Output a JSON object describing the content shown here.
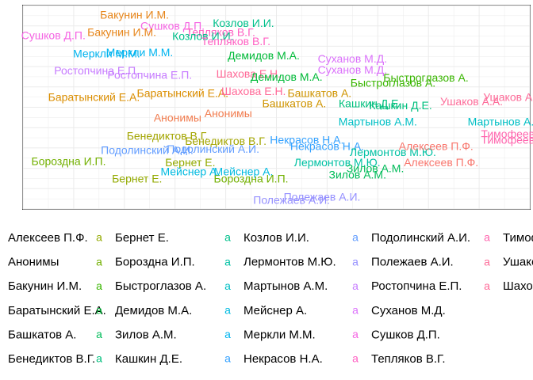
{
  "chart_data": {
    "type": "scatter",
    "title": "",
    "xlabel": "",
    "ylabel": "",
    "xlim": [
      0,
      100
    ],
    "ylim": [
      0,
      100
    ],
    "grid": true,
    "marker": "text",
    "legend": {
      "position": "bottom",
      "glyph": "a",
      "entries": [
        {
          "label": "Алексеев П.Ф.",
          "color": "#F8766D"
        },
        {
          "label": "Анонимы",
          "color": "#F17D50"
        },
        {
          "label": "Бакунин И.М.",
          "color": "#E7861B"
        },
        {
          "label": "Баратынский Е.А.",
          "color": "#DB8E00"
        },
        {
          "label": "Башкатов А.",
          "color": "#CF9400"
        },
        {
          "label": "Бенедиктов В.Г.",
          "color": "#A3A500"
        },
        {
          "label": "Бернет Е.",
          "color": "#93AA00"
        },
        {
          "label": "Бороздна И.П.",
          "color": "#72B000"
        },
        {
          "label": "Быстроглазов А.",
          "color": "#39B600"
        },
        {
          "label": "Демидов М.А.",
          "color": "#00BA38"
        },
        {
          "label": "Зилов А.М.",
          "color": "#00BC59"
        },
        {
          "label": "Кашкин Д.Е.",
          "color": "#00BF7D"
        },
        {
          "label": "Козлов И.И.",
          "color": "#00C08B"
        },
        {
          "label": "Лермонтов М.Ю.",
          "color": "#00C1A3"
        },
        {
          "label": "Мартынов А.М.",
          "color": "#00BFC4"
        },
        {
          "label": "Мейснер А.",
          "color": "#00BAE0"
        },
        {
          "label": "Меркли М.М.",
          "color": "#00B4EF"
        },
        {
          "label": "Некрасов Н.А.",
          "color": "#35A2FF"
        },
        {
          "label": "Подолинский А.И.",
          "color": "#619CFF"
        },
        {
          "label": "Полежаев А.И.",
          "color": "#9590FF"
        },
        {
          "label": "Ростопчина Е.П.",
          "color": "#C77CFF"
        },
        {
          "label": "Суханов М.Д.",
          "color": "#DB72FB"
        },
        {
          "label": "Сушков Д.П.",
          "color": "#F564E3"
        },
        {
          "label": "Тепляков В.Г.",
          "color": "#FF61C3"
        },
        {
          "label": "Тимофеев А.",
          "color": "#FF65AE"
        },
        {
          "label": "Ушаков А.А.",
          "color": "#FD6C99"
        },
        {
          "label": "Шахова Е.Н.",
          "color": "#FF6A98"
        }
      ]
    },
    "points": [
      {
        "label": "Бакунин И.М.",
        "x": 22.0,
        "y": 95.0,
        "color": "#E7861B"
      },
      {
        "label": "Сушков Д.П.",
        "x": 29.5,
        "y": 89.5,
        "color": "#F564E3"
      },
      {
        "label": "Козлов И.И.",
        "x": 43.5,
        "y": 91.0,
        "color": "#00C08B"
      },
      {
        "label": "Сушков Д.П.",
        "x": 6.0,
        "y": 85.0,
        "color": "#F564E3"
      },
      {
        "label": "Бакунин И.М.",
        "x": 19.5,
        "y": 86.5,
        "color": "#E7861B"
      },
      {
        "label": "Тепляков В.Г.",
        "x": 39.0,
        "y": 86.5,
        "color": "#FF61C3"
      },
      {
        "label": "Козлов И.И.",
        "x": 35.5,
        "y": 84.5,
        "color": "#00C08B"
      },
      {
        "label": "Тепляков В.Г.",
        "x": 42.0,
        "y": 82.0,
        "color": "#FF61C3"
      },
      {
        "label": "Меркли М.М.",
        "x": 16.5,
        "y": 76.0,
        "color": "#00B4EF"
      },
      {
        "label": "Меркли М.М.",
        "x": 23.0,
        "y": 76.5,
        "color": "#00B4EF"
      },
      {
        "label": "Демидов М.А.",
        "x": 47.5,
        "y": 75.0,
        "color": "#00BA38"
      },
      {
        "label": "Суханов М.Д.",
        "x": 65.0,
        "y": 73.5,
        "color": "#DB72FB"
      },
      {
        "label": "Ростопчина Е.П.",
        "x": 14.5,
        "y": 67.5,
        "color": "#C77CFF"
      },
      {
        "label": "Ростопчина Е.П.",
        "x": 25.0,
        "y": 65.5,
        "color": "#C77CFF"
      },
      {
        "label": "Шахова Е.Н.",
        "x": 44.5,
        "y": 66.0,
        "color": "#FF6A98"
      },
      {
        "label": "Демидов М.А.",
        "x": 52.0,
        "y": 64.5,
        "color": "#00BA38"
      },
      {
        "label": "Суханов М.Д.",
        "x": 65.0,
        "y": 68.0,
        "color": "#DB72FB"
      },
      {
        "label": "Быстроглазов А.",
        "x": 79.5,
        "y": 64.0,
        "color": "#39B600"
      },
      {
        "label": "Быстроглазов А.",
        "x": 73.0,
        "y": 61.5,
        "color": "#39B600"
      },
      {
        "label": "Баратынский Е.А.",
        "x": 14.0,
        "y": 54.5,
        "color": "#DB8E00"
      },
      {
        "label": "Баратынский Е.А.",
        "x": 31.5,
        "y": 56.5,
        "color": "#DB8E00"
      },
      {
        "label": "Шахова Е.Н.",
        "x": 45.5,
        "y": 57.5,
        "color": "#FF6A98"
      },
      {
        "label": "Башкатов А.",
        "x": 58.5,
        "y": 56.5,
        "color": "#CF9400"
      },
      {
        "label": "Башкатов А.",
        "x": 53.5,
        "y": 51.5,
        "color": "#CF9400"
      },
      {
        "label": "Кашкин Д.Е.",
        "x": 68.5,
        "y": 51.5,
        "color": "#00BF7D"
      },
      {
        "label": "Кашкин Д.Е.",
        "x": 74.5,
        "y": 50.5,
        "color": "#00BF7D"
      },
      {
        "label": "Ушаков А.А.",
        "x": 88.5,
        "y": 52.5,
        "color": "#FD6C99"
      },
      {
        "label": "Ушаков А.А.",
        "x": 97.0,
        "y": 54.5,
        "color": "#FD6C99"
      },
      {
        "label": "Анонимы",
        "x": 30.5,
        "y": 44.5,
        "color": "#F17D50"
      },
      {
        "label": "Анонимы",
        "x": 40.5,
        "y": 46.5,
        "color": "#F17D50"
      },
      {
        "label": "Мартынов А.М.",
        "x": 70.0,
        "y": 42.5,
        "color": "#00BFC4"
      },
      {
        "label": "Мартынов А.М.",
        "x": 95.5,
        "y": 42.5,
        "color": "#00BFC4"
      },
      {
        "label": "Тимофеев А.",
        "x": 97.0,
        "y": 36.5,
        "color": "#FF65AE"
      },
      {
        "label": "Тимофеев А.",
        "x": 97.0,
        "y": 33.5,
        "color": "#FF65AE"
      },
      {
        "label": "Бенедиктов В.Г.",
        "x": 28.5,
        "y": 35.5,
        "color": "#A3A500"
      },
      {
        "label": "Бенедиктов В.Г.",
        "x": 40.0,
        "y": 33.0,
        "color": "#A3A500"
      },
      {
        "label": "Некрасов Н.А.",
        "x": 56.0,
        "y": 33.5,
        "color": "#35A2FF"
      },
      {
        "label": "Некрасов Н.А.",
        "x": 60.0,
        "y": 30.5,
        "color": "#35A2FF"
      },
      {
        "label": "Лермонтов М.Ю.",
        "x": 73.0,
        "y": 27.5,
        "color": "#00C1A3"
      },
      {
        "label": "Лермонтов М.Ю.",
        "x": 62.0,
        "y": 22.5,
        "color": "#00C1A3"
      },
      {
        "label": "Алексеев П.Ф.",
        "x": 81.5,
        "y": 30.5,
        "color": "#F8766D"
      },
      {
        "label": "Алексеев П.Ф.",
        "x": 82.5,
        "y": 22.5,
        "color": "#F8766D"
      },
      {
        "label": "Подолинский А.И.",
        "x": 24.5,
        "y": 28.5,
        "color": "#619CFF"
      },
      {
        "label": "Подолинский А.И.",
        "x": 37.5,
        "y": 29.0,
        "color": "#619CFF"
      },
      {
        "label": "Бороздна И.П.",
        "x": 9.0,
        "y": 23.0,
        "color": "#72B000"
      },
      {
        "label": "Бороздна И.П.",
        "x": 45.0,
        "y": 14.5,
        "color": "#72B000"
      },
      {
        "label": "Бернет Е.",
        "x": 33.0,
        "y": 22.5,
        "color": "#93AA00"
      },
      {
        "label": "Бернет Е.",
        "x": 22.5,
        "y": 14.5,
        "color": "#93AA00"
      },
      {
        "label": "Мейснер А.",
        "x": 33.0,
        "y": 18.0,
        "color": "#00BAE0"
      },
      {
        "label": "Мейснер А.",
        "x": 43.5,
        "y": 18.0,
        "color": "#00BAE0"
      },
      {
        "label": "Зилов А.М.",
        "x": 69.5,
        "y": 19.5,
        "color": "#00BC59"
      },
      {
        "label": "Зилов А.М.",
        "x": 66.0,
        "y": 16.5,
        "color": "#00BC59"
      },
      {
        "label": "Полежаев А.И.",
        "x": 59.0,
        "y": 5.5,
        "color": "#9590FF"
      },
      {
        "label": "Полежаев А.И.",
        "x": 53.0,
        "y": 4.0,
        "color": "#9590FF"
      }
    ]
  }
}
